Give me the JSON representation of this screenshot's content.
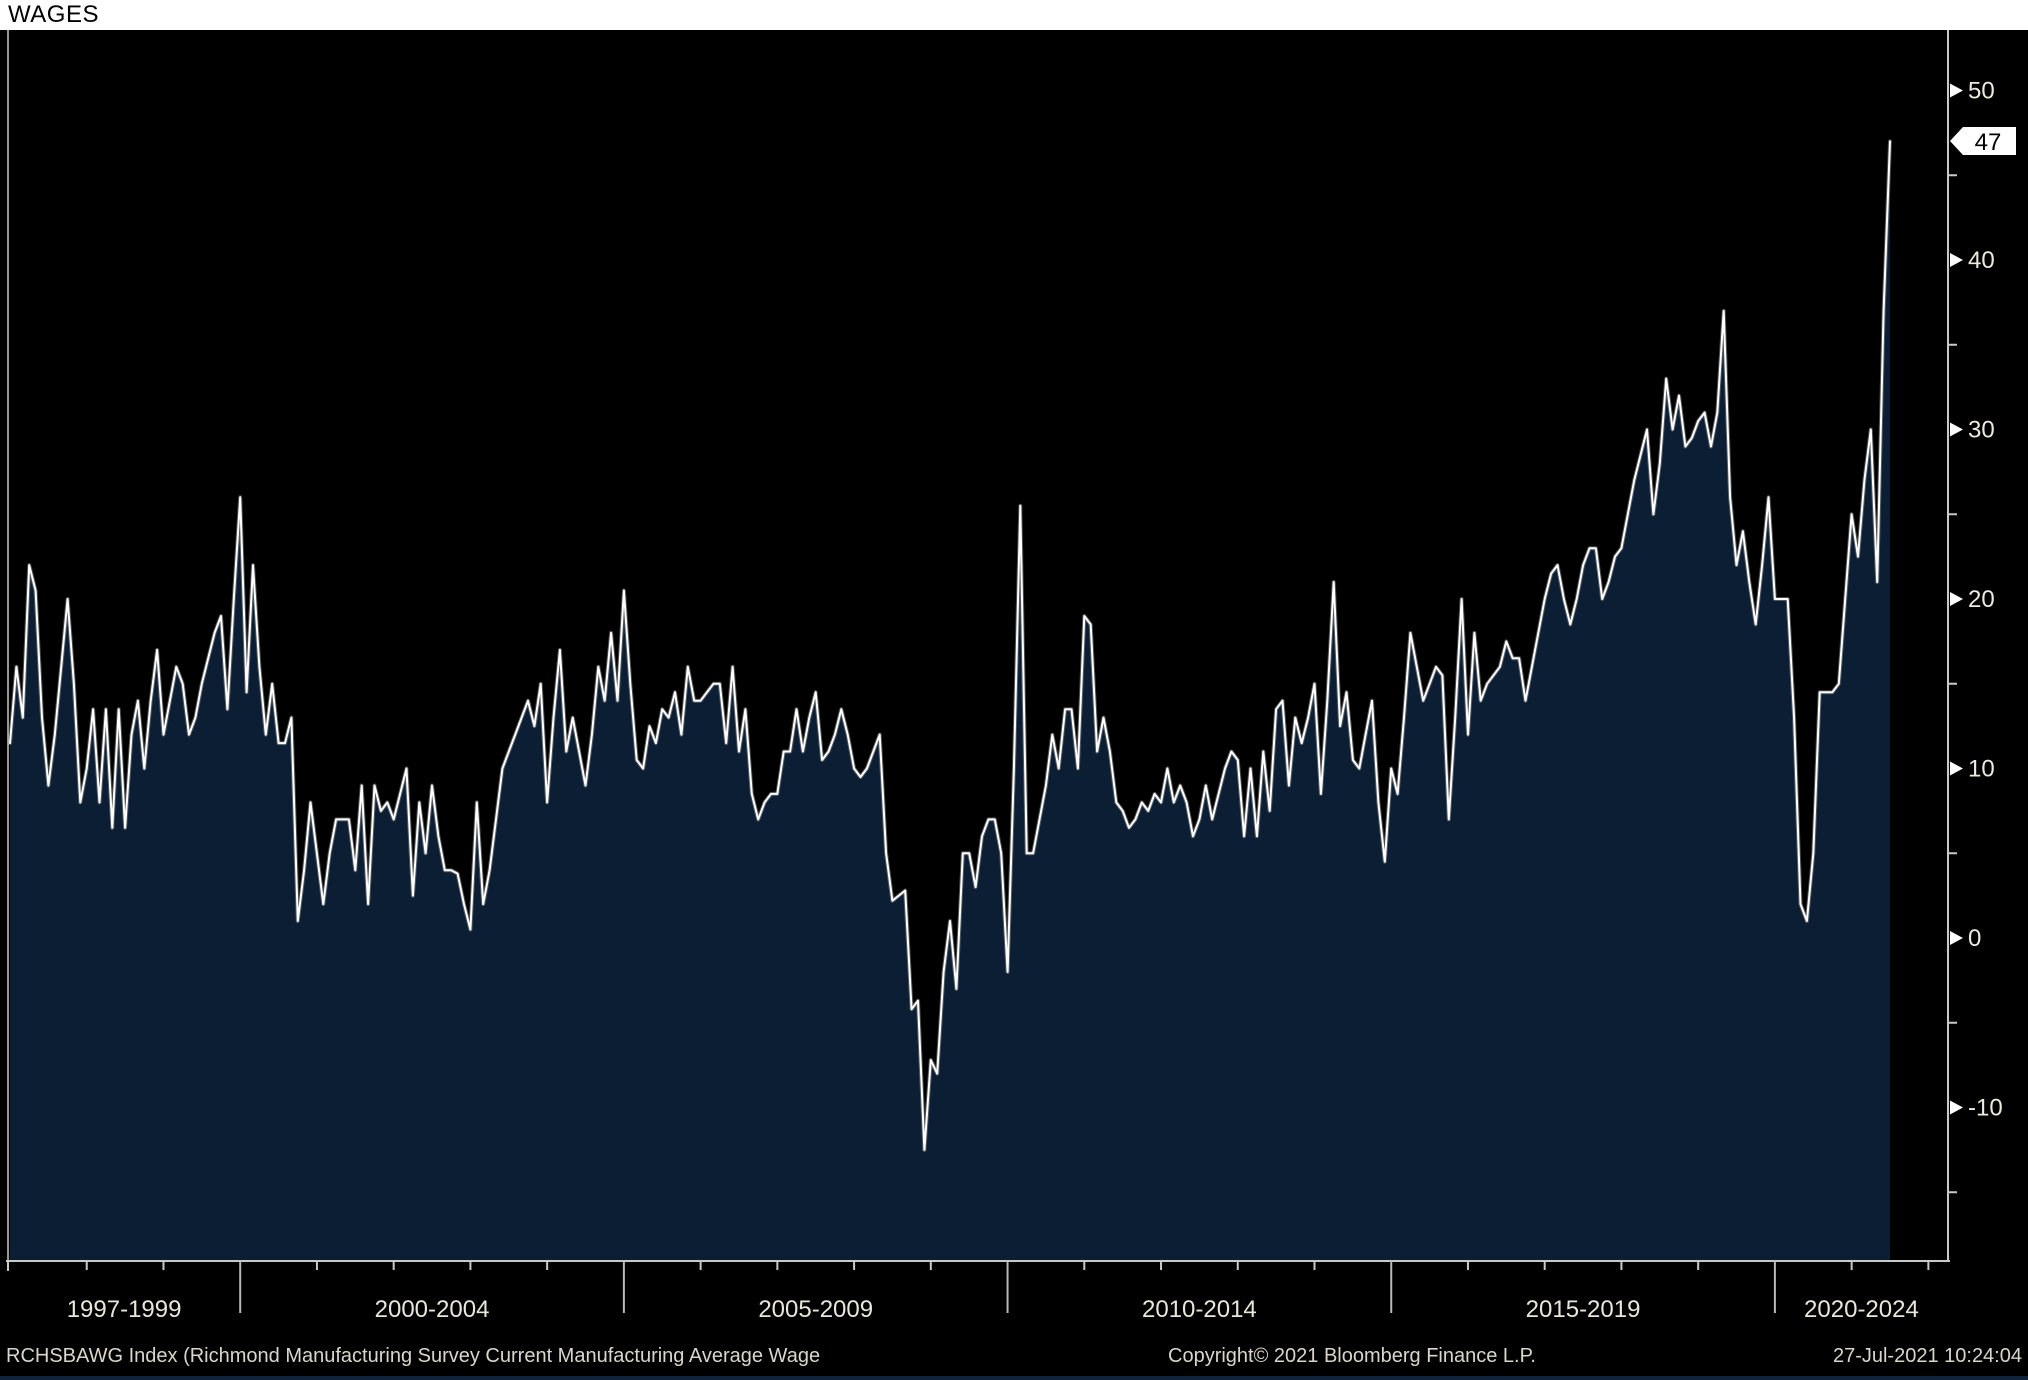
{
  "title": "WAGES",
  "colors": {
    "background": "#000000",
    "title_bar_bg": "#ffffff",
    "title_text": "#000000",
    "area_fill": "#0b1e33",
    "line": "#ffffff",
    "line_glow": "#8a8a8a",
    "axis": "#c9c9c9",
    "tick_label": "#edeadf",
    "flag_bg": "#ffffff",
    "flag_text": "#000000"
  },
  "y_axis": {
    "major_ticks": [
      50,
      40,
      30,
      20,
      10,
      0,
      -10
    ],
    "major_tick_labels": [
      "50",
      "40",
      "30",
      "20",
      "10",
      "0",
      "-10"
    ],
    "minor_ticks": [
      45,
      35,
      25,
      15,
      5,
      -5,
      -15
    ],
    "last_value": 47,
    "last_value_label": "47"
  },
  "x_axis": {
    "period_labels": [
      "1997-1999",
      "2000-2004",
      "2005-2009",
      "2010-2014",
      "2015-2019",
      "2020-2024"
    ]
  },
  "footer": {
    "left": "RCHSBAWG Index (Richmond Manufacturing Survey Current Manufacturing Average Wage",
    "center": "Copyright© 2021 Bloomberg Finance L.P.",
    "right": "27-Jul-2021 10:24:04"
  },
  "chart_data": {
    "type": "area",
    "title": "WAGES",
    "series_name": "RCHSBAWG Index (Richmond Manufacturing Survey Current Manufacturing Average Wage)",
    "frequency": "monthly",
    "x_start": "1997-01",
    "x_end": "2021-07",
    "ylim": [
      -19,
      53.5
    ],
    "grid": false,
    "legend": "none",
    "last_value": 47,
    "values": [
      11.5,
      16,
      13,
      22,
      20.5,
      13,
      9,
      12,
      16,
      20,
      15,
      8,
      10,
      13.5,
      8,
      13.5,
      6.5,
      13.5,
      6.5,
      12,
      14,
      10,
      14,
      17,
      12,
      14,
      16,
      15,
      12,
      13,
      15,
      16.5,
      18,
      19,
      13.5,
      20,
      26,
      14.5,
      22,
      16,
      12,
      15,
      11.5,
      11.5,
      13,
      1,
      4,
      8,
      5,
      2,
      5,
      7,
      7,
      7,
      4,
      9,
      2,
      9,
      7.5,
      8,
      7,
      8.5,
      10,
      2.5,
      8,
      5,
      9,
      6,
      4,
      4,
      3.8,
      2,
      0.5,
      8,
      2,
      4,
      7,
      10,
      11,
      12,
      13,
      14,
      12.5,
      15,
      8,
      13,
      17,
      11,
      13,
      11,
      9,
      12,
      16,
      14,
      18,
      14,
      20.5,
      15,
      10.5,
      10,
      12.5,
      11.5,
      13.5,
      13,
      14.5,
      12,
      16,
      14,
      14,
      14.5,
      15,
      15,
      11.5,
      16,
      11,
      13.5,
      8.5,
      7,
      8,
      8.5,
      8.5,
      11,
      11,
      13.5,
      11,
      13,
      14.5,
      10.5,
      11,
      12,
      13.5,
      12,
      10,
      9.5,
      10,
      11,
      12,
      5,
      2.2,
      2.5,
      2.8,
      -4.2,
      -3.7,
      -12.5,
      -7.2,
      -8,
      -2,
      1,
      -3,
      5,
      5,
      3,
      6,
      7,
      7,
      5,
      -2,
      10,
      25.5,
      5,
      5,
      7,
      9,
      12,
      10,
      13.5,
      13.5,
      10,
      19,
      18.5,
      11,
      13,
      11,
      8,
      7.5,
      6.5,
      7,
      8,
      7.5,
      8.5,
      8,
      10,
      8,
      9,
      8,
      6,
      7,
      9,
      7,
      8.5,
      10,
      11,
      10.5,
      6,
      10,
      6,
      11,
      7.5,
      13.5,
      14,
      9,
      13,
      11.5,
      13,
      15,
      8.5,
      14,
      21,
      12.5,
      14.5,
      10.5,
      10,
      12,
      14,
      8,
      4.5,
      10,
      8.5,
      13,
      18,
      16,
      14,
      15,
      16,
      15.5,
      7,
      13,
      20,
      12,
      18,
      14,
      15,
      15.5,
      16,
      17.5,
      16.5,
      16.5,
      14,
      16,
      18,
      20,
      21.5,
      22,
      20,
      18.5,
      20,
      22,
      23,
      23,
      20,
      21,
      22.5,
      23,
      25,
      27,
      28.5,
      30,
      25,
      28,
      33,
      30,
      32,
      29,
      29.5,
      30.5,
      31,
      29,
      31,
      37,
      26,
      22,
      24,
      21,
      18.5,
      22,
      26,
      20,
      20,
      20,
      13,
      2,
      1,
      5,
      14.5,
      14.5,
      14.5,
      15,
      20,
      25,
      22.5,
      27,
      30,
      21,
      37,
      47
    ]
  }
}
